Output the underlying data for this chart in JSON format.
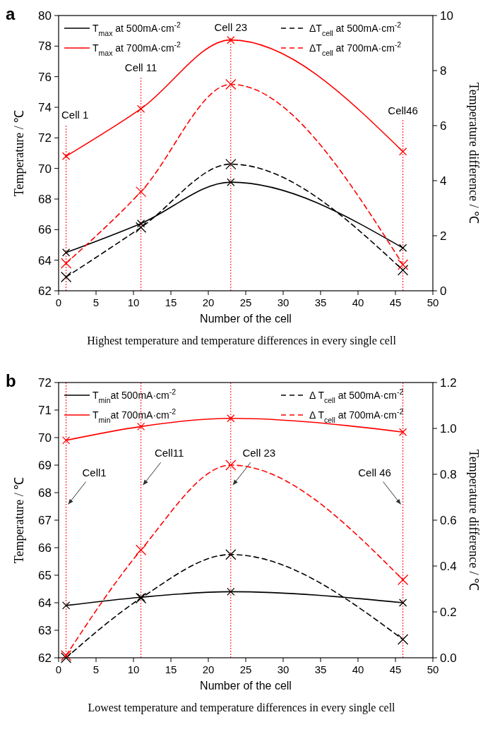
{
  "chart_data": [
    {
      "type": "line",
      "title": "a",
      "xlabel": "Number of the cell",
      "ylabel": "Temperature / ℃",
      "y2label": "Temperature difference / ℃",
      "x": [
        1,
        11,
        23,
        46
      ],
      "xlim": [
        0,
        50
      ],
      "xticks": [
        0,
        5,
        10,
        15,
        20,
        25,
        30,
        35,
        40,
        45,
        50
      ],
      "ylim": [
        62,
        80
      ],
      "yticks": [
        62,
        64,
        66,
        68,
        70,
        72,
        74,
        76,
        78,
        80
      ],
      "y2lim": [
        0,
        10
      ],
      "y2ticks": [
        0,
        2,
        4,
        6,
        8,
        10
      ],
      "marker": "cross",
      "legend": "top",
      "series": [
        {
          "name": "T$_{max}$ at 500mA·cm$^{-2}$",
          "color": "#000000",
          "values": [
            64.5,
            66.4,
            69.1,
            64.8
          ]
        },
        {
          "name": "T$_{max}$ at 700mA·cm$^{-2}$",
          "color": "#ff0000",
          "values": [
            70.8,
            73.9,
            78.4,
            71.1
          ]
        },
        {
          "name": "ΔT$_{cell}$ at 500mA·cm$^{-2}$",
          "color": "#000000",
          "axis": "y2",
          "line_style": "dashed",
          "values": [
            0.5,
            2.3,
            4.6,
            0.75
          ]
        },
        {
          "name": "ΔT$_{cell}$ at 700mA·cm$^{-2}$",
          "color": "#ff0000",
          "axis": "y2",
          "line_style": "dashed",
          "values": [
            1.0,
            3.6,
            7.5,
            0.95
          ]
        }
      ],
      "ref_lines": [
        {
          "axis": "x",
          "value": 1,
          "label": "Cell 1",
          "color": "#ff0000",
          "line_style": "dotted"
        },
        {
          "axis": "x",
          "value": 11,
          "label": "Cell 11",
          "color": "#ff0000",
          "line_style": "dotted"
        },
        {
          "axis": "x",
          "value": 23,
          "label": "Cell 23",
          "color": "#ff0000",
          "line_style": "dotted"
        },
        {
          "axis": "x",
          "value": 46,
          "label": "Cell46",
          "color": "#ff0000",
          "line_style": "dotted"
        }
      ],
      "annotations": [
        "Highest temperature and temperature differences in every single cell"
      ]
    },
    {
      "type": "line",
      "title": "b",
      "xlabel": "Number of the cell",
      "ylabel": "Temperature / ℃",
      "y2label": "Temperature difference / ℃",
      "x": [
        1,
        11,
        23,
        46
      ],
      "xlim": [
        0,
        50
      ],
      "xticks": [
        0,
        5,
        10,
        15,
        20,
        25,
        30,
        35,
        40,
        45,
        50
      ],
      "ylim": [
        62,
        72
      ],
      "yticks": [
        62,
        63,
        64,
        65,
        66,
        67,
        68,
        69,
        70,
        71,
        72
      ],
      "y2lim": [
        0,
        1.2
      ],
      "y2ticks": [
        {
          "value": 0,
          "label": "0.0"
        },
        0.2,
        0.4,
        0.6,
        0.8,
        {
          "value": 1,
          "label": "1.0"
        },
        1.2
      ],
      "marker": "cross",
      "legend": "top",
      "series": [
        {
          "name": "T$_{min}$at 500mA·cm$^{-2}$",
          "color": "#000000",
          "values": [
            63.9,
            64.2,
            64.4,
            64.0
          ]
        },
        {
          "name": "T$_{min}$at 700mA·cm$^{-2}$",
          "color": "#ff0000",
          "values": [
            69.9,
            70.4,
            70.7,
            70.2
          ]
        },
        {
          "name": "Δ T$_{cell}$ at 500mA·cm$^{-2}$",
          "color": "#000000",
          "axis": "y2",
          "line_style": "dashed",
          "values": [
            0.0,
            0.26,
            0.45,
            0.08
          ]
        },
        {
          "name": "Δ T$_{cell}$ at 700mA·cm$^{-2}$",
          "color": "#ff0000",
          "axis": "y2",
          "line_style": "dashed",
          "values": [
            0.01,
            0.47,
            0.84,
            0.34
          ]
        }
      ],
      "ref_lines": [
        {
          "axis": "x",
          "value": 1,
          "label": "Cell1",
          "color": "#ff0000",
          "line_style": "dotted"
        },
        {
          "axis": "x",
          "value": 11,
          "label": "Cell11",
          "color": "#ff0000",
          "line_style": "dotted"
        },
        {
          "axis": "x",
          "value": 23,
          "label": "Cell 23",
          "color": "#ff0000",
          "line_style": "dotted"
        },
        {
          "axis": "x",
          "value": 46,
          "label": "Cell 46",
          "color": "#ff0000",
          "line_style": "dotted"
        }
      ],
      "annotations": [
        "Lowest temperature and temperature differences in every single cell"
      ]
    }
  ]
}
